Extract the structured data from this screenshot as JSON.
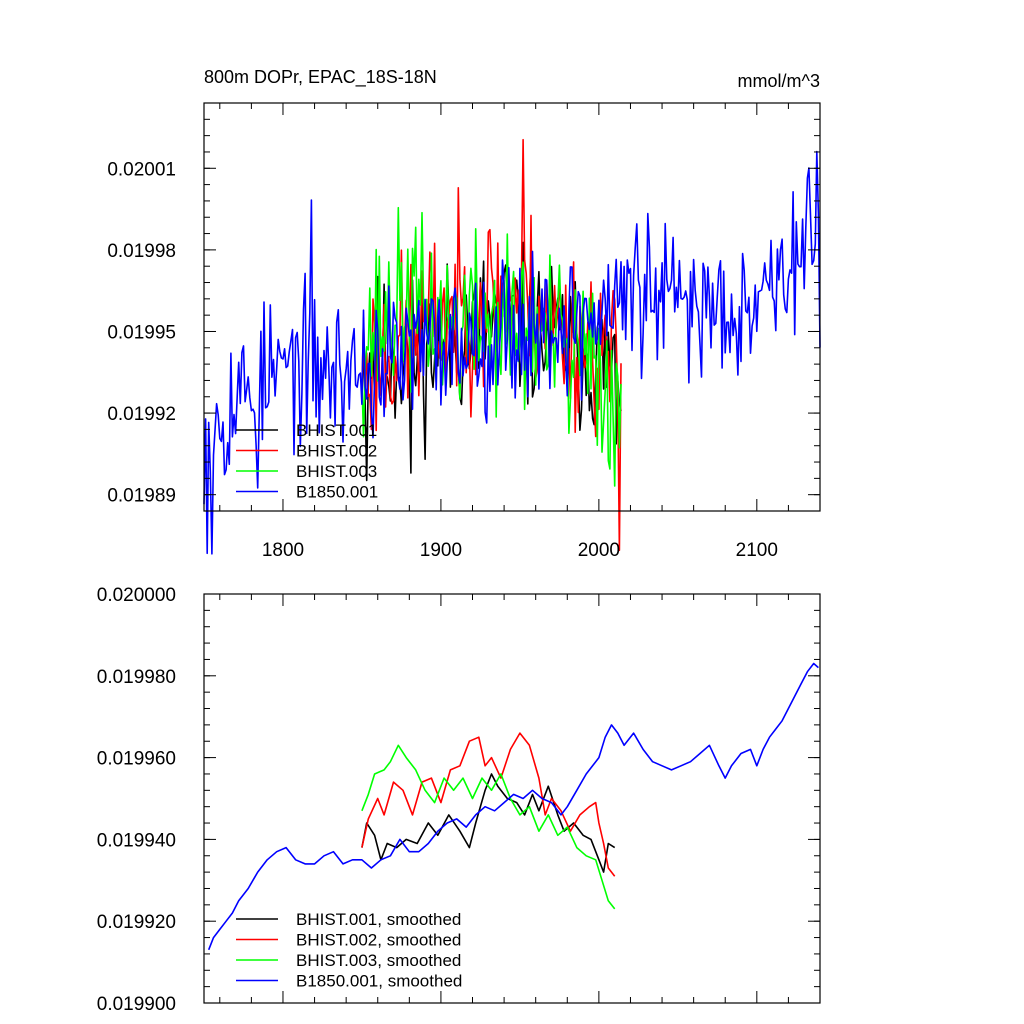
{
  "chart_data": [
    {
      "type": "line",
      "title": "800m DOPr, EPAC_18S-18N",
      "units": "mmol/m^3",
      "xlim": [
        1750,
        2140
      ],
      "ylim": [
        0.019884,
        0.020034
      ],
      "x_ticks": [
        1800,
        1900,
        2000,
        2100
      ],
      "y_ticks": [
        0.02001,
        0.01998,
        0.01995,
        0.01992,
        0.01989
      ],
      "y_tick_labels": [
        "0.02001",
        "0.01998",
        "0.01995",
        "0.01992",
        "0.01989"
      ],
      "grid": false,
      "legend_position": "bottom-left",
      "series": [
        {
          "name": "BHIST.001",
          "color": "#000000",
          "x_start": 1850,
          "x_end": 2014,
          "base": [
            [
              1850,
              0.019942
            ],
            [
              1880,
              0.01994
            ],
            [
              1920,
              0.01995
            ],
            [
              1935,
              0.019955
            ],
            [
              1960,
              0.019949
            ],
            [
              1990,
              0.019942
            ],
            [
              2005,
              0.019938
            ],
            [
              2014,
              0.019936
            ]
          ],
          "noise": 1.8e-05,
          "seed": 11,
          "spikes": [
            [
              1853,
              -4e-05
            ],
            [
              1881,
              -5e-05
            ],
            [
              2011,
              -5e-05
            ]
          ]
        },
        {
          "name": "BHIST.002",
          "color": "#ff0000",
          "x_start": 1850,
          "x_end": 2014,
          "base": [
            [
              1850,
              0.019937
            ],
            [
              1880,
              0.019948
            ],
            [
              1910,
              0.019958
            ],
            [
              1930,
              0.019963
            ],
            [
              1955,
              0.019962
            ],
            [
              1980,
              0.01995
            ],
            [
              2000,
              0.019944
            ],
            [
              2014,
              0.019932
            ]
          ],
          "noise": 2e-05,
          "seed": 23,
          "spikes": [
            [
              1952,
              4e-05
            ],
            [
              2013,
              -5e-05
            ]
          ]
        },
        {
          "name": "BHIST.003",
          "color": "#00ff00",
          "x_start": 1850,
          "x_end": 2014,
          "base": [
            [
              1850,
              0.019947
            ],
            [
              1865,
              0.019955
            ],
            [
              1878,
              0.019962
            ],
            [
              1900,
              0.019953
            ],
            [
              1940,
              0.019953
            ],
            [
              1970,
              0.019946
            ],
            [
              1990,
              0.01994
            ],
            [
              2005,
              0.019932
            ],
            [
              2014,
              0.019924
            ]
          ],
          "noise": 2e-05,
          "seed": 37,
          "spikes": [
            [
              1981,
              -4e-05
            ],
            [
              2010,
              -6e-05
            ]
          ]
        },
        {
          "name": "B1850.001",
          "color": "#0000ff",
          "x_start": 1750,
          "x_end": 2140,
          "base": [
            [
              1750,
              0.019915
            ],
            [
              1770,
              0.019925
            ],
            [
              1790,
              0.019933
            ],
            [
              1810,
              0.019938
            ],
            [
              1830,
              0.019935
            ],
            [
              1850,
              0.019936
            ],
            [
              1880,
              0.019942
            ],
            [
              1920,
              0.019948
            ],
            [
              1960,
              0.019952
            ],
            [
              2000,
              0.019955
            ],
            [
              2020,
              0.019965
            ],
            [
              2050,
              0.01996
            ],
            [
              2080,
              0.01996
            ],
            [
              2110,
              0.019968
            ],
            [
              2135,
              0.019982
            ],
            [
              2140,
              0.019981
            ]
          ],
          "noise": 1.7e-05,
          "seed": 53,
          "spikes": [
            [
              1752,
              -3e-05
            ],
            [
              1755,
              -4e-05
            ],
            [
              1784,
              -4e-05
            ],
            [
              1818,
              3.5e-05
            ],
            [
              2133,
              3e-05
            ]
          ]
        }
      ]
    },
    {
      "type": "line",
      "xlim": [
        1750,
        2140
      ],
      "ylim": [
        0.0199,
        0.02
      ],
      "x_ticks": [
        1800,
        1900,
        2000,
        2100
      ],
      "y_ticks": [
        0.02,
        0.01998,
        0.01996,
        0.01994,
        0.01992,
        0.0199
      ],
      "y_tick_labels": [
        "0.020000",
        "0.019980",
        "0.019960",
        "0.019940",
        "0.019920",
        "0.019900"
      ],
      "grid": false,
      "legend_position": "bottom-left",
      "series": [
        {
          "name": "BHIST.001, smoothed",
          "color": "#000000",
          "points": [
            [
              1850,
              0.019938
            ],
            [
              1853,
              0.019944
            ],
            [
              1858,
              0.019941
            ],
            [
              1862,
              0.019935
            ],
            [
              1866,
              0.019939
            ],
            [
              1872,
              0.019938
            ],
            [
              1878,
              0.01994
            ],
            [
              1885,
              0.019939
            ],
            [
              1892,
              0.019944
            ],
            [
              1898,
              0.019941
            ],
            [
              1905,
              0.019946
            ],
            [
              1912,
              0.019942
            ],
            [
              1918,
              0.019938
            ],
            [
              1922,
              0.019944
            ],
            [
              1928,
              0.019952
            ],
            [
              1932,
              0.019956
            ],
            [
              1936,
              0.019953
            ],
            [
              1942,
              0.01995
            ],
            [
              1948,
              0.019949
            ],
            [
              1953,
              0.019946
            ],
            [
              1958,
              0.019951
            ],
            [
              1962,
              0.019947
            ],
            [
              1968,
              0.019953
            ],
            [
              1974,
              0.019946
            ],
            [
              1978,
              0.019942
            ],
            [
              1984,
              0.019944
            ],
            [
              1990,
              0.019941
            ],
            [
              1995,
              0.01994
            ],
            [
              2000,
              0.019935
            ],
            [
              2003,
              0.019932
            ],
            [
              2006,
              0.019939
            ],
            [
              2010,
              0.019938
            ]
          ]
        },
        {
          "name": "BHIST.002, smoothed",
          "color": "#ff0000",
          "points": [
            [
              1850,
              0.019938
            ],
            [
              1854,
              0.019945
            ],
            [
              1860,
              0.01995
            ],
            [
              1864,
              0.019946
            ],
            [
              1870,
              0.019954
            ],
            [
              1876,
              0.019952
            ],
            [
              1882,
              0.019946
            ],
            [
              1888,
              0.019954
            ],
            [
              1894,
              0.019955
            ],
            [
              1900,
              0.019949
            ],
            [
              1906,
              0.019957
            ],
            [
              1912,
              0.019958
            ],
            [
              1918,
              0.019964
            ],
            [
              1924,
              0.019965
            ],
            [
              1928,
              0.019958
            ],
            [
              1932,
              0.01996
            ],
            [
              1938,
              0.019955
            ],
            [
              1944,
              0.019962
            ],
            [
              1950,
              0.019966
            ],
            [
              1956,
              0.019963
            ],
            [
              1962,
              0.019955
            ],
            [
              1966,
              0.019946
            ],
            [
              1970,
              0.01995
            ],
            [
              1976,
              0.019947
            ],
            [
              1982,
              0.019942
            ],
            [
              1988,
              0.019946
            ],
            [
              1994,
              0.019948
            ],
            [
              1998,
              0.019949
            ],
            [
              2000,
              0.019944
            ],
            [
              2003,
              0.019939
            ],
            [
              2006,
              0.019933
            ],
            [
              2010,
              0.019931
            ]
          ]
        },
        {
          "name": "BHIST.003, smoothed",
          "color": "#00ff00",
          "points": [
            [
              1850,
              0.019947
            ],
            [
              1854,
              0.019951
            ],
            [
              1858,
              0.019956
            ],
            [
              1864,
              0.019957
            ],
            [
              1868,
              0.019959
            ],
            [
              1873,
              0.019963
            ],
            [
              1878,
              0.01996
            ],
            [
              1884,
              0.019957
            ],
            [
              1890,
              0.019952
            ],
            [
              1896,
              0.019949
            ],
            [
              1902,
              0.019955
            ],
            [
              1908,
              0.019952
            ],
            [
              1914,
              0.019955
            ],
            [
              1920,
              0.01995
            ],
            [
              1926,
              0.019955
            ],
            [
              1932,
              0.019952
            ],
            [
              1938,
              0.019956
            ],
            [
              1944,
              0.01995
            ],
            [
              1950,
              0.019946
            ],
            [
              1956,
              0.019948
            ],
            [
              1962,
              0.019942
            ],
            [
              1968,
              0.019946
            ],
            [
              1974,
              0.019941
            ],
            [
              1980,
              0.019943
            ],
            [
              1986,
              0.019938
            ],
            [
              1992,
              0.019936
            ],
            [
              1998,
              0.019935
            ],
            [
              2002,
              0.01993
            ],
            [
              2006,
              0.019925
            ],
            [
              2010,
              0.019923
            ]
          ]
        },
        {
          "name": "B1850.001, smoothed",
          "color": "#0000ff",
          "points": [
            [
              1753,
              0.019913
            ],
            [
              1756,
              0.019916
            ],
            [
              1760,
              0.019918
            ],
            [
              1764,
              0.01992
            ],
            [
              1768,
              0.019922
            ],
            [
              1772,
              0.019925
            ],
            [
              1778,
              0.019928
            ],
            [
              1784,
              0.019932
            ],
            [
              1790,
              0.019935
            ],
            [
              1796,
              0.019937
            ],
            [
              1802,
              0.019938
            ],
            [
              1808,
              0.019935
            ],
            [
              1814,
              0.019934
            ],
            [
              1820,
              0.019934
            ],
            [
              1826,
              0.019936
            ],
            [
              1832,
              0.019937
            ],
            [
              1838,
              0.019934
            ],
            [
              1844,
              0.019935
            ],
            [
              1850,
              0.019935
            ],
            [
              1856,
              0.019933
            ],
            [
              1862,
              0.019935
            ],
            [
              1868,
              0.019936
            ],
            [
              1874,
              0.01994
            ],
            [
              1880,
              0.019937
            ],
            [
              1886,
              0.019937
            ],
            [
              1892,
              0.019939
            ],
            [
              1898,
              0.019942
            ],
            [
              1904,
              0.019944
            ],
            [
              1910,
              0.019945
            ],
            [
              1916,
              0.019943
            ],
            [
              1922,
              0.019946
            ],
            [
              1928,
              0.019948
            ],
            [
              1934,
              0.019947
            ],
            [
              1940,
              0.019949
            ],
            [
              1946,
              0.019951
            ],
            [
              1952,
              0.01995
            ],
            [
              1958,
              0.019952
            ],
            [
              1964,
              0.01995
            ],
            [
              1970,
              0.019949
            ],
            [
              1976,
              0.019946
            ],
            [
              1980,
              0.019948
            ],
            [
              1986,
              0.019952
            ],
            [
              1992,
              0.019956
            ],
            [
              1996,
              0.019958
            ],
            [
              2000,
              0.01996
            ],
            [
              2004,
              0.019965
            ],
            [
              2008,
              0.019968
            ],
            [
              2012,
              0.019966
            ],
            [
              2016,
              0.019963
            ],
            [
              2022,
              0.019966
            ],
            [
              2028,
              0.019962
            ],
            [
              2034,
              0.019959
            ],
            [
              2040,
              0.019958
            ],
            [
              2046,
              0.019957
            ],
            [
              2052,
              0.019958
            ],
            [
              2058,
              0.019959
            ],
            [
              2064,
              0.019961
            ],
            [
              2070,
              0.019963
            ],
            [
              2076,
              0.019958
            ],
            [
              2080,
              0.019955
            ],
            [
              2084,
              0.019958
            ],
            [
              2090,
              0.019961
            ],
            [
              2096,
              0.019962
            ],
            [
              2100,
              0.019958
            ],
            [
              2104,
              0.019962
            ],
            [
              2108,
              0.019965
            ],
            [
              2112,
              0.019967
            ],
            [
              2116,
              0.019969
            ],
            [
              2120,
              0.019972
            ],
            [
              2124,
              0.019975
            ],
            [
              2128,
              0.019978
            ],
            [
              2132,
              0.019981
            ],
            [
              2136,
              0.019983
            ],
            [
              2139,
              0.019982
            ]
          ]
        }
      ]
    }
  ]
}
